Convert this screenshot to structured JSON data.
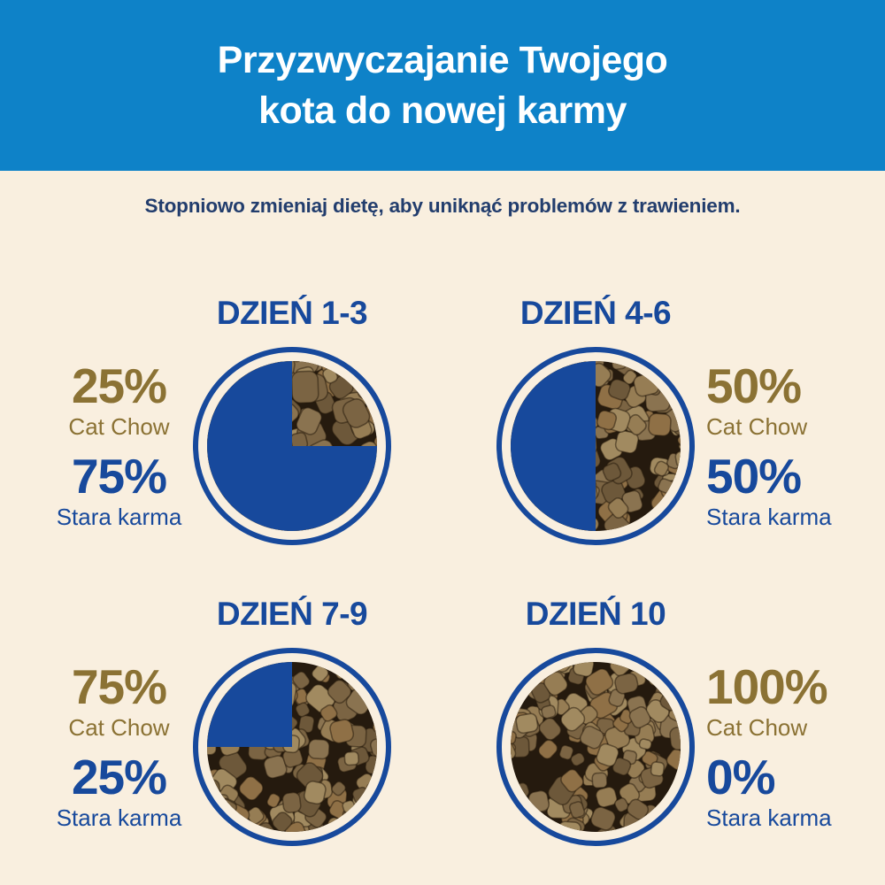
{
  "header": {
    "title_line1": "Przyzwyczajanie Twojego",
    "title_line2": "kota do nowej karmy"
  },
  "subtitle": "Stopniowo zmieniaj dietę, aby uniknąć problemów z trawieniem.",
  "colors": {
    "header_bg": "#0e82c8",
    "page_bg": "#f9efdf",
    "header_text": "#ffffff",
    "subtitle_text": "#223d6d",
    "brand_blue": "#17499c",
    "gold": "#8b7234",
    "kibble_bg": "#251a0e",
    "kibble_palette": [
      "#8a7350",
      "#967d54",
      "#7b6443",
      "#a18a60",
      "#6d583a",
      "#8f7046"
    ]
  },
  "chart_data": {
    "type": "pie",
    "unit": "%",
    "legend_position": "beside-each-pie",
    "series_labels": {
      "new_food": "Cat Chow",
      "old_food": "Stara karma"
    },
    "stages": [
      {
        "title": "DZIEŃ 1-3",
        "cat_chow_pct": 25,
        "stara_karma_pct": 75,
        "cat_chow_display": "25%",
        "stara_karma_display": "75%",
        "labels_side": "left"
      },
      {
        "title": "DZIEŃ 4-6",
        "cat_chow_pct": 50,
        "stara_karma_pct": 50,
        "cat_chow_display": "50%",
        "stara_karma_display": "50%",
        "labels_side": "right"
      },
      {
        "title": "DZIEŃ 7-9",
        "cat_chow_pct": 75,
        "stara_karma_pct": 25,
        "cat_chow_display": "75%",
        "stara_karma_display": "25%",
        "labels_side": "left"
      },
      {
        "title": "DZIEŃ 10",
        "cat_chow_pct": 100,
        "stara_karma_pct": 0,
        "cat_chow_display": "100%",
        "stara_karma_display": "0%",
        "labels_side": "right"
      }
    ]
  }
}
